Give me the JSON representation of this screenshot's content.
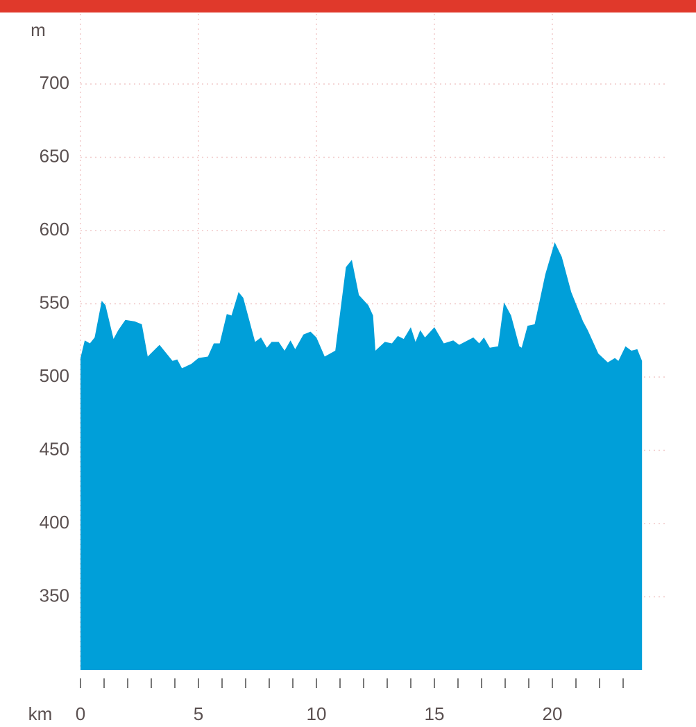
{
  "chart_data": {
    "type": "area",
    "y_label": "m",
    "x_label": "km",
    "color": "#009fd9",
    "xlim": [
      0,
      24.8
    ],
    "ylim": [
      300,
      750
    ],
    "xticks": [
      0,
      5,
      10,
      15,
      20
    ],
    "xtick_marks": [
      0,
      1,
      2,
      3,
      4,
      5,
      6,
      7,
      8,
      9,
      10,
      11,
      12,
      13,
      14,
      15,
      16,
      17,
      18,
      19,
      20,
      21,
      22,
      23
    ],
    "yticks": [
      350,
      400,
      450,
      500,
      550,
      600,
      650,
      700
    ],
    "grid": true,
    "x": [
      0,
      0.18,
      0.4,
      0.6,
      0.9,
      1.06,
      1.4,
      1.6,
      1.9,
      2.3,
      2.6,
      2.85,
      3.35,
      3.9,
      4.1,
      4.3,
      4.7,
      5.0,
      5.4,
      5.65,
      5.9,
      6.2,
      6.4,
      6.7,
      6.9,
      7.4,
      7.65,
      7.9,
      8.1,
      8.4,
      8.65,
      8.9,
      9.1,
      9.45,
      9.75,
      10.0,
      10.35,
      10.8,
      11.25,
      11.5,
      11.8,
      12.2,
      12.4,
      12.5,
      12.9,
      13.2,
      13.45,
      13.7,
      14.0,
      14.2,
      14.4,
      14.6,
      15.0,
      15.4,
      15.8,
      16.05,
      16.65,
      16.9,
      17.1,
      17.35,
      17.7,
      17.95,
      18.25,
      18.6,
      18.7,
      18.95,
      19.25,
      19.7,
      20.1,
      20.4,
      20.8,
      21.3,
      21.5,
      21.95,
      22.35,
      22.65,
      22.8,
      23.1,
      23.35,
      23.6,
      23.8
    ],
    "values": [
      513,
      525,
      523,
      527,
      552,
      549,
      526,
      532,
      539,
      538,
      536,
      514,
      522,
      511,
      512,
      506,
      509,
      513,
      514,
      523,
      523,
      543,
      542,
      558,
      554,
      524,
      527,
      520,
      524,
      524,
      518,
      525,
      519,
      529,
      531,
      527,
      514,
      518,
      575,
      580,
      556,
      549,
      542,
      518,
      524,
      523,
      528,
      526,
      534,
      524,
      532,
      527,
      534,
      523,
      525,
      522,
      527,
      523,
      527,
      520,
      521,
      551,
      542,
      521,
      520,
      535,
      536,
      570,
      592,
      582,
      558,
      538,
      532,
      516,
      510,
      513,
      511,
      521,
      518,
      519,
      511
    ]
  }
}
